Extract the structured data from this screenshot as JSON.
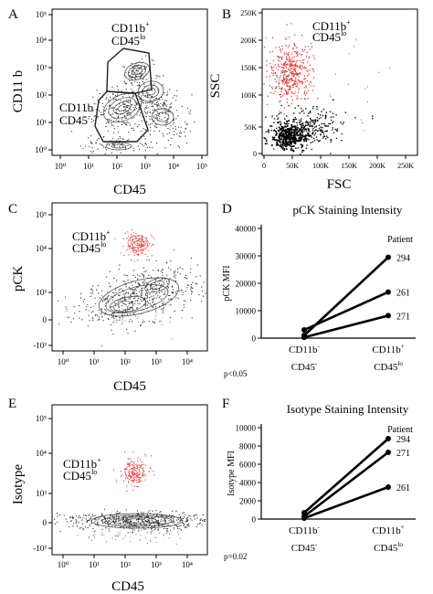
{
  "panels": {
    "A": {
      "letter": "A",
      "x_title": "CD45",
      "y_title": "CD11 b",
      "x_ticks": [
        "10⁰",
        "10¹",
        "10²",
        "10³",
        "10⁴",
        "10⁵"
      ],
      "y_ticks": [
        "10⁰",
        "10¹",
        "10²",
        "10³",
        "10⁴",
        "10⁵"
      ],
      "gate_upper": {
        "main": "CD11b",
        "sup": "+",
        "line2": "CD45",
        "line2_sup": "lo"
      },
      "gate_lower": {
        "main": "CD11b",
        "sup": "-",
        "line2": "CD45",
        "line2_sup": "-"
      }
    },
    "B": {
      "letter": "B",
      "x_title": "FSC",
      "y_title": "SSC",
      "x_ticks": [
        "0",
        "50K",
        "100K",
        "150K",
        "200K",
        "250K"
      ],
      "y_ticks": [
        "0",
        "50K",
        "100K",
        "150K",
        "200K",
        "250K"
      ],
      "gate_label": {
        "main": "CD11b",
        "sup": "+",
        "line2": "CD45",
        "line2_sup": "lo"
      }
    },
    "C": {
      "letter": "C",
      "x_title": "CD45",
      "y_title": "pCK",
      "x_ticks": [
        "10⁰",
        "10¹",
        "10²",
        "10³",
        "10⁴"
      ],
      "y_ticks": [
        "10⁵",
        "10⁴",
        "10³",
        "0",
        "-10³"
      ],
      "gate_label": {
        "main": "CD11b",
        "sup": "+",
        "line2": "CD45",
        "line2_sup": "lo"
      }
    },
    "E": {
      "letter": "E",
      "x_title": "CD45",
      "y_title": "Isotype",
      "x_ticks": [
        "10⁰",
        "10¹",
        "10²",
        "10³",
        "10⁴"
      ],
      "y_ticks": [
        "10⁵",
        "10⁴",
        "10³",
        "0",
        "-10³"
      ],
      "gate_label": {
        "main": "CD11b",
        "sup": "+",
        "line2": "CD45",
        "line2_sup": "lo"
      }
    },
    "D": {
      "letter": "D",
      "pvalue": "p<0.05",
      "patient_header": "Patient"
    },
    "F": {
      "letter": "F",
      "pvalue": "p=0.02",
      "patient_header": "Patient"
    }
  },
  "chart_data": [
    {
      "panel": "D",
      "type": "line",
      "title": "pCK Staining Intensity",
      "ylabel": "pCK MFI",
      "xlabel": "",
      "ylim": [
        0,
        40000
      ],
      "y_ticks": [
        0,
        10000,
        20000,
        30000,
        40000
      ],
      "categories": [
        {
          "main": "CD11b",
          "sup": "-",
          "line2": "CD45",
          "line2_sup": "-"
        },
        {
          "main": "CD11b",
          "sup": "+",
          "line2": "CD45",
          "line2_sup": "lo"
        }
      ],
      "series": [
        {
          "name": "294",
          "values": [
            1000,
            29500
          ]
        },
        {
          "name": "261",
          "values": [
            3000,
            16800
          ]
        },
        {
          "name": "271",
          "values": [
            300,
            8200
          ]
        }
      ]
    },
    {
      "panel": "F",
      "type": "line",
      "title": "Isotype Staining Intensity",
      "ylabel": "Isotype MFI",
      "xlabel": "",
      "ylim": [
        0,
        10000
      ],
      "y_ticks": [
        0,
        2000,
        4000,
        6000,
        8000,
        10000
      ],
      "categories": [
        {
          "main": "CD11b",
          "sup": "-",
          "line2": "CD45",
          "line2_sup": "-"
        },
        {
          "main": "CD11b",
          "sup": "+",
          "line2": "CD45",
          "line2_sup": "lo"
        }
      ],
      "series": [
        {
          "name": "294",
          "values": [
            700,
            8800
          ]
        },
        {
          "name": "271",
          "values": [
            300,
            7300
          ]
        },
        {
          "name": "261",
          "values": [
            100,
            3500
          ]
        }
      ]
    }
  ]
}
